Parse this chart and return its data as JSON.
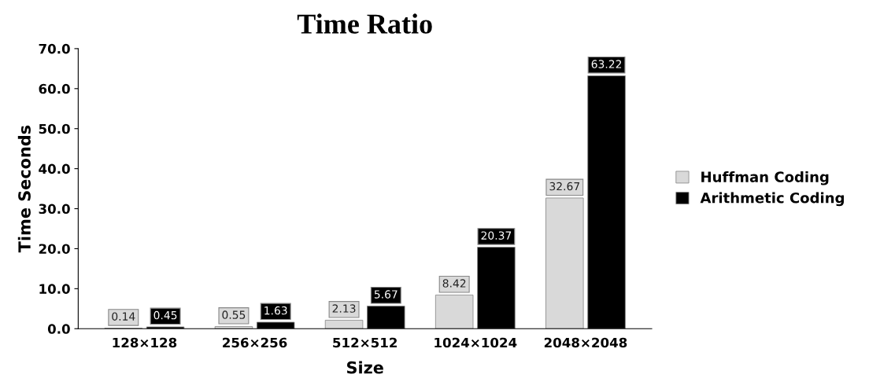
{
  "chart_data": {
    "type": "bar",
    "title": "Time Ratio",
    "xlabel": "Size",
    "ylabel": "Time Seconds",
    "categories": [
      "128×128",
      "256×256",
      "512×512",
      "1024×1024",
      "2048×2048"
    ],
    "series": [
      {
        "name": "Huffman Coding",
        "color": "#d9d9d9",
        "values": [
          0.14,
          0.55,
          2.13,
          8.42,
          32.67
        ]
      },
      {
        "name": "Arithmetic Coding",
        "color": "#000000",
        "values": [
          0.45,
          1.63,
          5.67,
          20.37,
          63.22
        ]
      }
    ],
    "ylim": [
      0,
      70
    ],
    "yticks": [
      {
        "value": 0,
        "label": "0.0"
      },
      {
        "value": 10,
        "label": "10.0"
      },
      {
        "value": 20,
        "label": "20.0"
      },
      {
        "value": 30,
        "label": "30.0"
      },
      {
        "value": 40,
        "label": "40.0"
      },
      {
        "value": 50,
        "label": "50.0"
      },
      {
        "value": 60,
        "label": "60.0"
      },
      {
        "value": 70,
        "label": "70.0"
      }
    ],
    "data_labels": true,
    "legend": "right",
    "grid": false
  }
}
